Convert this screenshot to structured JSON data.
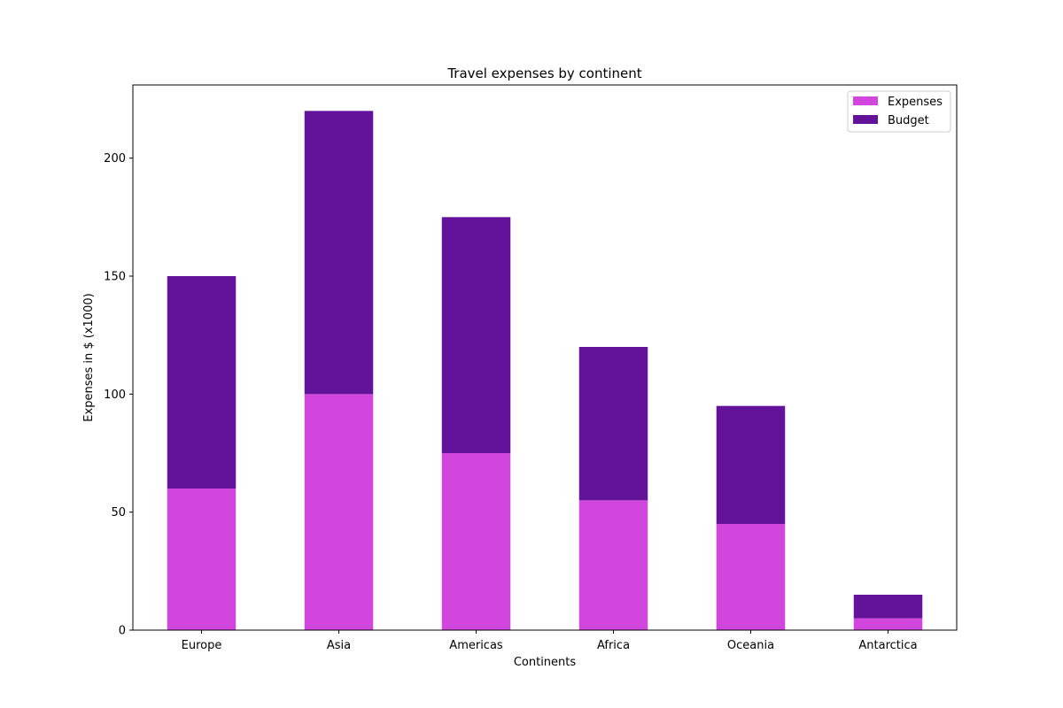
{
  "chart_data": {
    "type": "bar",
    "stacked": true,
    "title": "Travel expenses by continent",
    "xlabel": "Continents",
    "ylabel": "Expenses in $ (x1000)",
    "categories": [
      "Europe",
      "Asia",
      "Americas",
      "Africa",
      "Oceania",
      "Antarctica"
    ],
    "series": [
      {
        "name": "Expenses",
        "color": "#d147de",
        "values": [
          60,
          100,
          75,
          55,
          45,
          5
        ]
      },
      {
        "name": "Budget",
        "color": "#631399",
        "values": [
          90,
          120,
          100,
          65,
          50,
          10
        ]
      }
    ],
    "ylim": [
      0,
      231
    ],
    "yticks": [
      0,
      50,
      100,
      150,
      200
    ],
    "ytick_labels": [
      "0",
      "50",
      "100",
      "150",
      "200"
    ],
    "grid": false,
    "legend": {
      "position": "top-right",
      "entries": [
        "Expenses",
        "Budget"
      ]
    }
  }
}
